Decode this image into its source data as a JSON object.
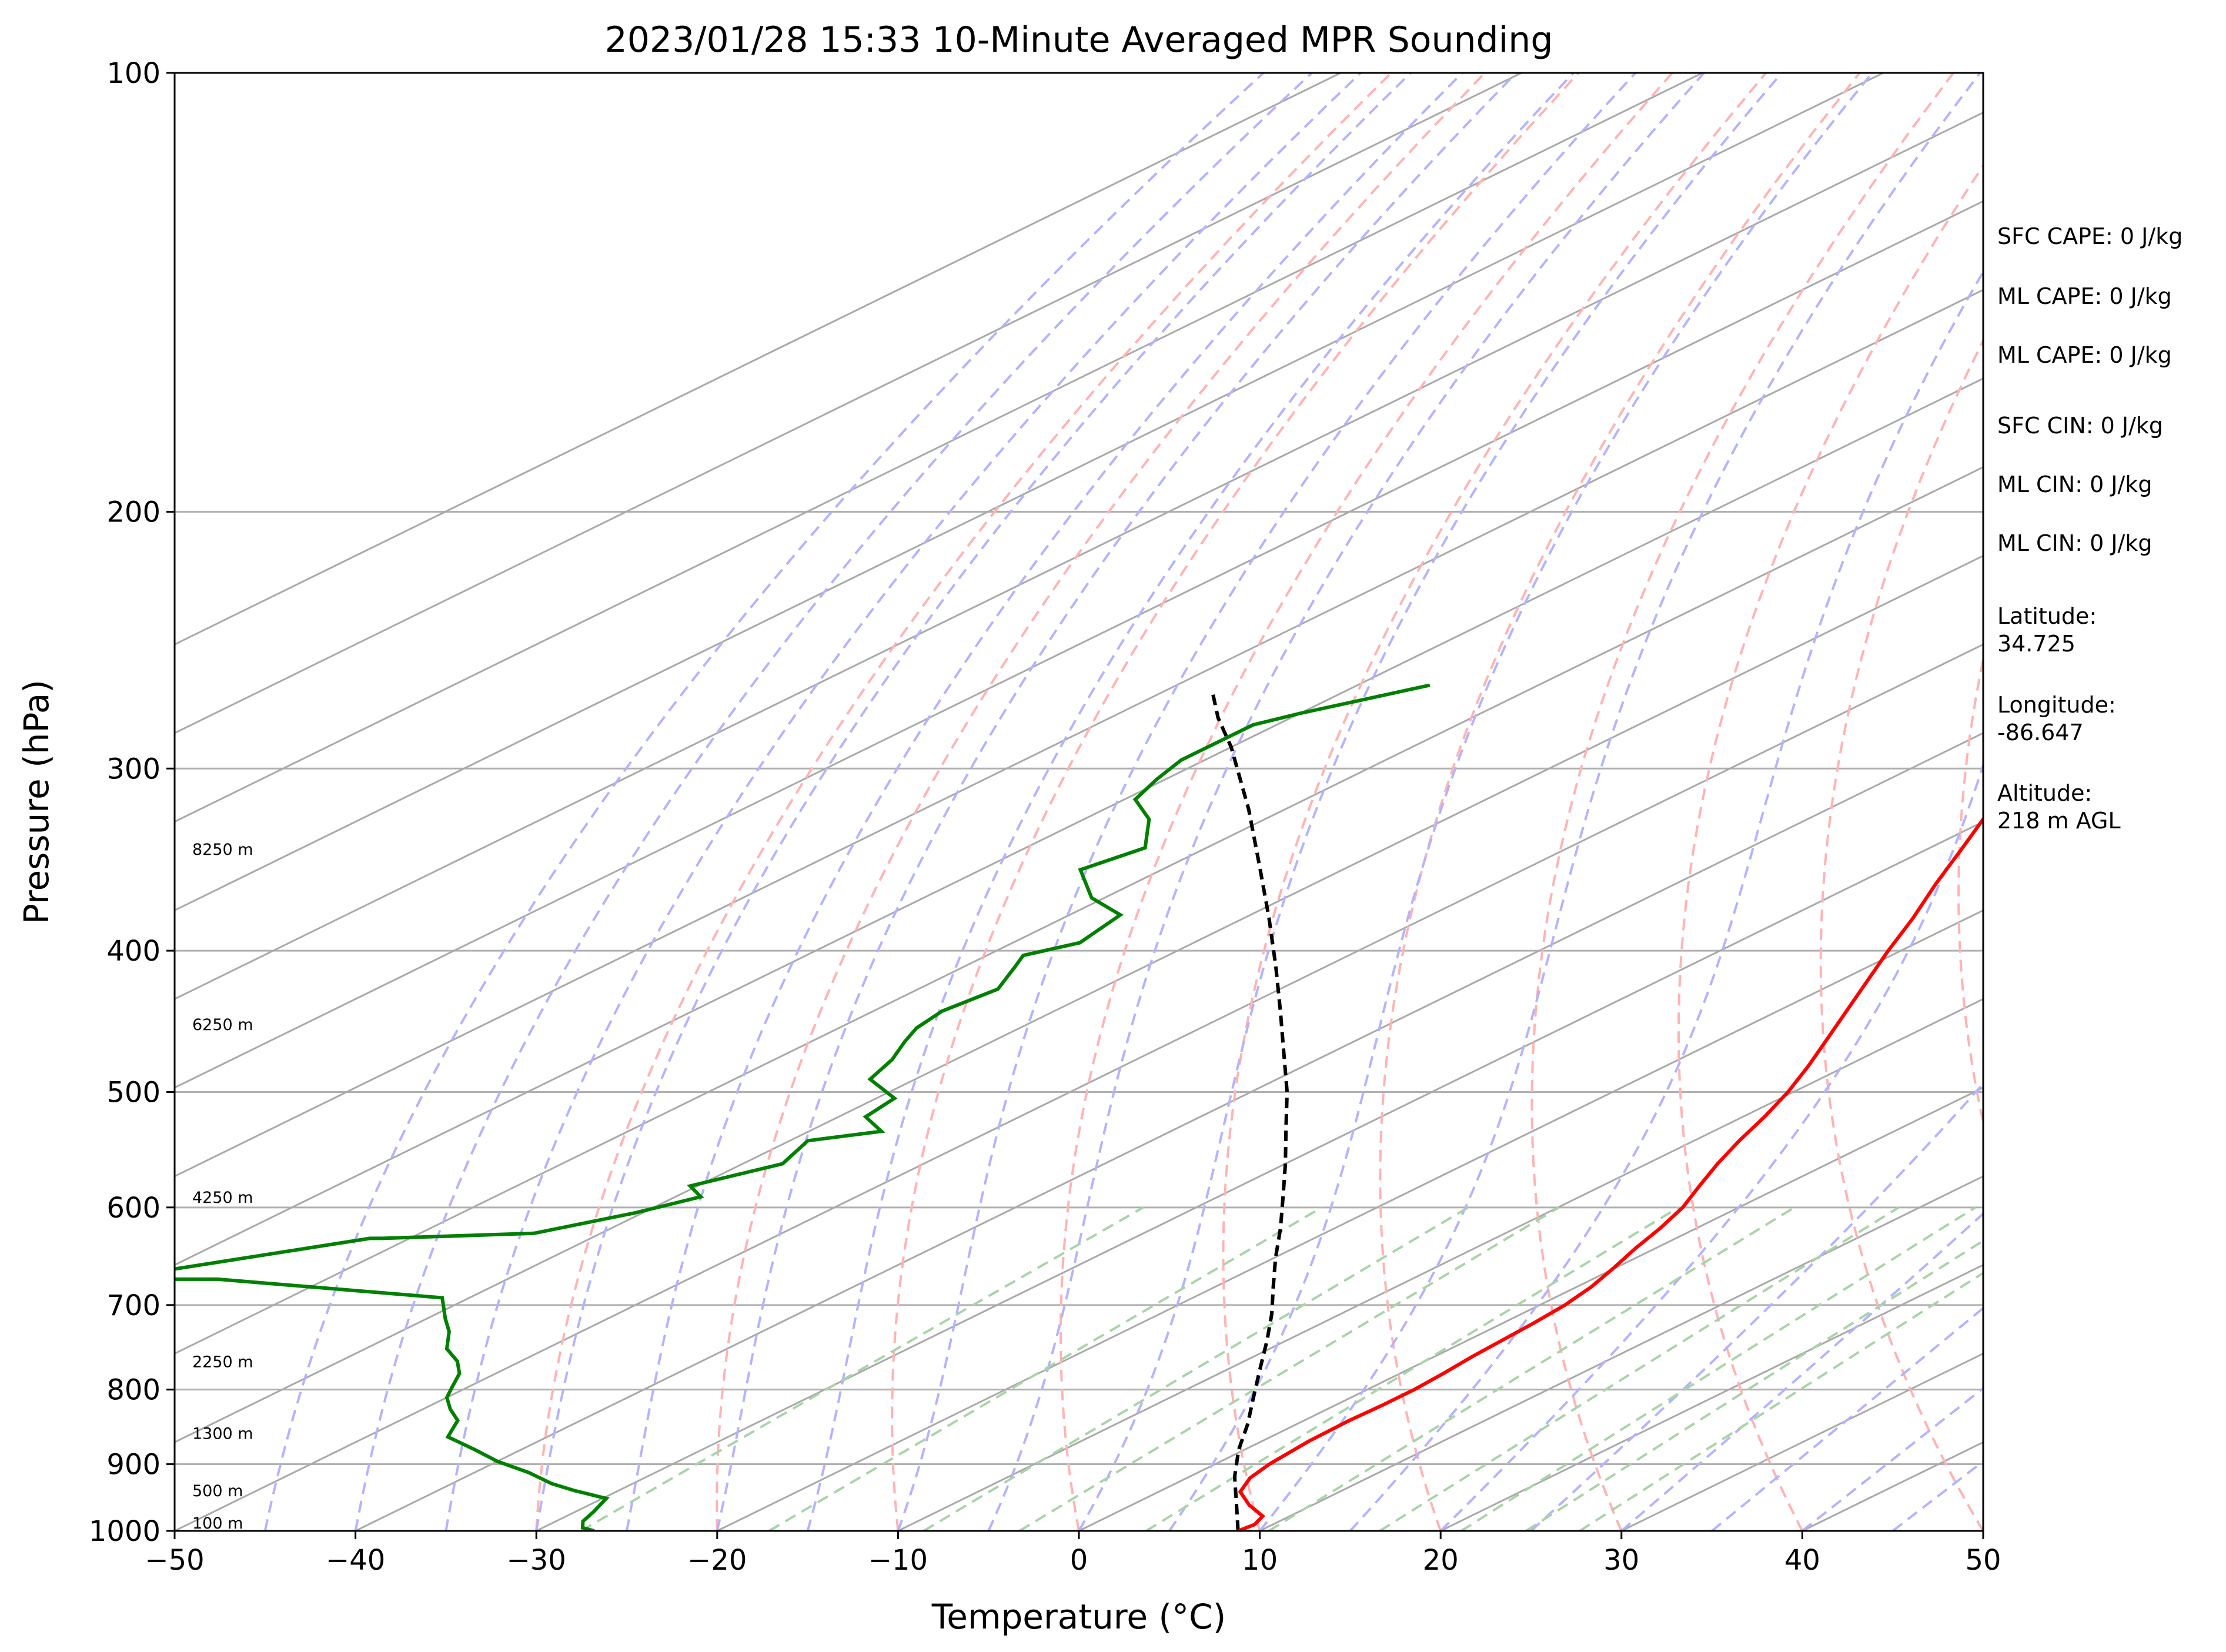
{
  "chart_data": {
    "type": "line",
    "subtype": "skew-t log-p sounding",
    "title": "2023/01/28 15:33 10-Minute Averaged MPR Sounding",
    "xlabel": "Temperature (°C)",
    "ylabel": "Pressure (hPa)",
    "xlim": [
      -50,
      50
    ],
    "ylim": [
      1000,
      100
    ],
    "y_scale": "log",
    "x_ticks": [
      "−50",
      "−40",
      "−30",
      "−20",
      "−10",
      "0",
      "10",
      "20",
      "30",
      "40",
      "50"
    ],
    "y_ticks": [
      {
        "p": 100,
        "label": "100"
      },
      {
        "p": 200,
        "label": "200"
      },
      {
        "p": 300,
        "label": "300"
      },
      {
        "p": 400,
        "label": "400"
      },
      {
        "p": 500,
        "label": "500"
      },
      {
        "p": 600,
        "label": "600"
      },
      {
        "p": 700,
        "label": "700"
      },
      {
        "p": 800,
        "label": "800"
      },
      {
        "p": 900,
        "label": "900"
      },
      {
        "p": 1000,
        "label": "1000"
      }
    ],
    "height_labels": [
      {
        "p": 1000,
        "label": "100 m"
      },
      {
        "p": 950,
        "label": "500 m"
      },
      {
        "p": 868,
        "label": "1300 m"
      },
      {
        "p": 775,
        "label": "2250 m"
      },
      {
        "p": 598,
        "label": "4250 m"
      },
      {
        "p": 455,
        "label": "6250 m"
      },
      {
        "p": 345,
        "label": "8250 m"
      }
    ],
    "series": [
      {
        "role": "temperature",
        "color": "#ff0000",
        "points": [
          [
            8.8,
            1000
          ],
          [
            9.0,
            990
          ],
          [
            8.5,
            977
          ],
          [
            6.5,
            960
          ],
          [
            4.5,
            940
          ],
          [
            3.5,
            920
          ],
          [
            3.0,
            900
          ],
          [
            2.6,
            868
          ],
          [
            2.5,
            840
          ],
          [
            2.6,
            820
          ],
          [
            2.6,
            800
          ],
          [
            2.4,
            780
          ],
          [
            2.1,
            760
          ],
          [
            1.9,
            740
          ],
          [
            1.7,
            720
          ],
          [
            1.4,
            700
          ],
          [
            0.8,
            680
          ],
          [
            -0.1,
            660
          ],
          [
            -1.1,
            640
          ],
          [
            -2.0,
            620
          ],
          [
            -3.1,
            600
          ],
          [
            -4.6,
            580
          ],
          [
            -6.1,
            560
          ],
          [
            -7.5,
            540
          ],
          [
            -8.8,
            520
          ],
          [
            -10.3,
            500
          ],
          [
            -12.1,
            480
          ],
          [
            -14.1,
            460
          ],
          [
            -16.2,
            440
          ],
          [
            -18.4,
            420
          ],
          [
            -20.7,
            400
          ],
          [
            -23.0,
            380
          ],
          [
            -25.6,
            360
          ],
          [
            -28.2,
            340
          ],
          [
            -31.0,
            320
          ],
          [
            -33.5,
            300
          ],
          [
            -35.0,
            290
          ],
          [
            -36.5,
            280
          ],
          [
            -38.6,
            262
          ]
        ]
      },
      {
        "role": "dewpoint",
        "color": "#008000",
        "points": [
          [
            -26.8,
            1000
          ],
          [
            -27.8,
            995
          ],
          [
            -28.5,
            985
          ],
          [
            -29.0,
            970
          ],
          [
            -29.8,
            950
          ],
          [
            -32.5,
            938
          ],
          [
            -34.5,
            928
          ],
          [
            -37.0,
            912
          ],
          [
            -40.0,
            896
          ],
          [
            -42.5,
            880
          ],
          [
            -45.5,
            862
          ],
          [
            -46.8,
            840
          ],
          [
            -48.5,
            825
          ],
          [
            -50.0,
            810
          ],
          [
            -51.0,
            795
          ],
          [
            -52.0,
            780
          ],
          [
            -53.5,
            765
          ],
          [
            -55.5,
            750
          ],
          [
            -57.3,
            730
          ],
          [
            -59.0,
            715
          ],
          [
            -61.5,
            692
          ],
          [
            -76.0,
            672
          ],
          [
            -82.0,
            672
          ],
          [
            -72.2,
            630
          ],
          [
            -71.5,
            630
          ],
          [
            -63.7,
            625
          ],
          [
            -60.4,
            605
          ],
          [
            -58.6,
            590
          ],
          [
            -60.4,
            580
          ],
          [
            -57.8,
            560
          ],
          [
            -59.0,
            540
          ],
          [
            -56.0,
            532
          ],
          [
            -58.5,
            520
          ],
          [
            -59.0,
            505
          ],
          [
            -62.5,
            490
          ],
          [
            -63.5,
            475
          ],
          [
            -64.8,
            462
          ],
          [
            -65.7,
            452
          ],
          [
            -66.2,
            440
          ],
          [
            -65.6,
            425
          ],
          [
            -67.2,
            410
          ],
          [
            -68.0,
            403
          ],
          [
            -66.3,
            395
          ],
          [
            -67.2,
            378
          ],
          [
            -70.7,
            368
          ],
          [
            -74.5,
            352
          ],
          [
            -73.4,
            340
          ],
          [
            -76.4,
            325
          ],
          [
            -79.4,
            315
          ],
          [
            -80.5,
            305
          ],
          [
            -81.3,
            296
          ],
          [
            -81.3,
            280
          ],
          [
            -80.0,
            275
          ],
          [
            -76.0,
            263
          ]
        ]
      },
      {
        "role": "parcel",
        "color": "#000000",
        "dashed": true,
        "points": [
          [
            8.8,
            1000
          ],
          [
            5.8,
            960
          ],
          [
            2.5,
            918
          ],
          [
            -0.3,
            880
          ],
          [
            -2.7,
            845
          ],
          [
            -5.4,
            810
          ],
          [
            -8.2,
            775
          ],
          [
            -11.1,
            740
          ],
          [
            -13.8,
            710
          ],
          [
            -16.8,
            680
          ],
          [
            -19.9,
            650
          ],
          [
            -23.0,
            620
          ],
          [
            -26.4,
            590
          ],
          [
            -30.0,
            560
          ],
          [
            -33.9,
            530
          ],
          [
            -38.0,
            500
          ],
          [
            -42.6,
            470
          ],
          [
            -47.5,
            440
          ],
          [
            -52.8,
            410
          ],
          [
            -58.6,
            380
          ],
          [
            -65.0,
            350
          ],
          [
            -72.0,
            320
          ],
          [
            -80.0,
            290
          ],
          [
            -84.0,
            277
          ],
          [
            -87.5,
            265
          ]
        ]
      }
    ],
    "reference_lines": {
      "isotherms": "solid gray",
      "dry_adiabats": "dashed red",
      "moist_adiabats": "dashed blue",
      "mixing_ratio_lines": "dashed green",
      "isobars": "solid gray",
      "grid": true
    }
  },
  "side_panel": [
    "SFC CAPE: 0 J/kg",
    "ML CAPE: 0 J/kg",
    "ML CAPE: 0 J/kg",
    "SFC CIN: 0 J/kg",
    "ML CIN: 0 J/kg",
    "ML CIN: 0 J/kg",
    "Latitude:",
    "34.725",
    "Longitude:",
    "-86.647",
    "Altitude:",
    "218 m AGL"
  ]
}
